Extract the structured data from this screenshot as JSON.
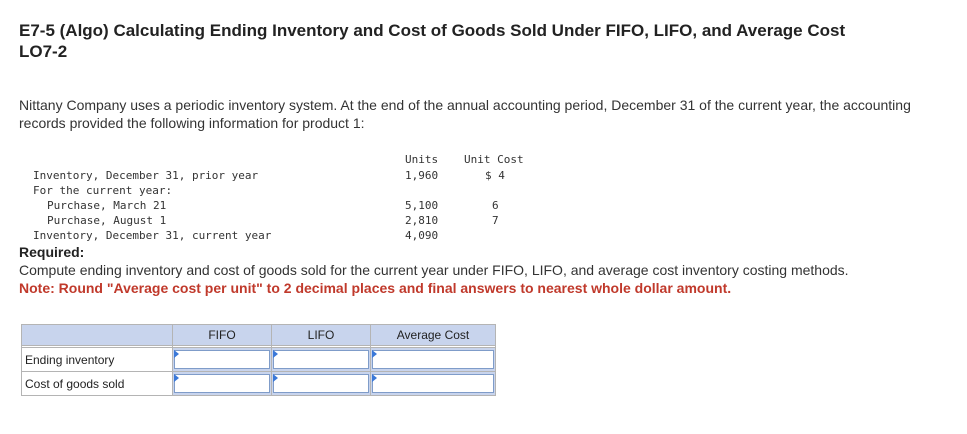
{
  "problem": {
    "title_line1": "E7-5 (Algo) Calculating Ending Inventory and Cost of Goods Sold Under FIFO, LIFO, and Average Cost",
    "title_line2": "LO7-2",
    "intro": "Nittany Company uses a periodic inventory system. At the end of the annual accounting period, December 31 of the current year, the accounting records provided the following information for product 1:"
  },
  "data_table": {
    "header_units": "Units",
    "header_unit_cost": "Unit Cost",
    "rows": [
      {
        "label": "Inventory, December 31, prior year",
        "units": "1,960",
        "unit_cost": "$ 4"
      },
      {
        "label": "For the current year:",
        "units": "",
        "unit_cost": ""
      },
      {
        "label": "Purchase, March 21",
        "units": "5,100",
        "unit_cost": "6"
      },
      {
        "label": "Purchase, August 1",
        "units": "2,810",
        "unit_cost": "7"
      },
      {
        "label": "Inventory, December 31, current year",
        "units": "4,090",
        "unit_cost": ""
      }
    ]
  },
  "required": {
    "label": "Required:",
    "instruction": "Compute ending inventory and cost of goods sold for the current year under FIFO, LIFO, and average cost inventory costing methods.",
    "note": "Note: Round \"Average cost per unit\" to 2 decimal places and final answers to nearest whole dollar amount."
  },
  "answer_table": {
    "columns": [
      "FIFO",
      "LIFO",
      "Average Cost"
    ],
    "rows": [
      {
        "label": "Ending inventory",
        "values": [
          "",
          "",
          ""
        ]
      },
      {
        "label": "Cost of goods sold",
        "values": [
          "",
          "",
          ""
        ]
      }
    ]
  }
}
